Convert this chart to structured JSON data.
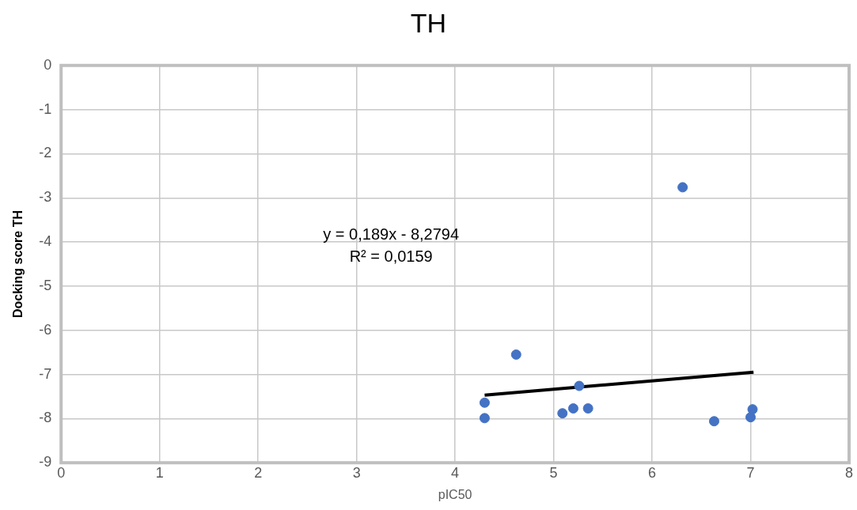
{
  "chart_data": {
    "type": "scatter",
    "title": "TH",
    "xlabel": "pIC50",
    "ylabel": "Docking score TH",
    "annotations": [
      "y = 0,189x - 8,2794",
      "R² = 0,0159"
    ],
    "series": [
      {
        "color": "#4472c4",
        "marker": "circle",
        "x": [
          4.3,
          4.3,
          4.62,
          5.26,
          5.09,
          5.2,
          5.35,
          6.31,
          6.63,
          7.02,
          7.0
        ],
        "values": [
          -7.64,
          -7.99,
          -6.55,
          -7.26,
          -7.88,
          -7.77,
          -7.77,
          -2.76,
          -8.06,
          -7.79,
          -7.97
        ]
      },
      {
        "type": "line",
        "color": "#000000",
        "marker": "none",
        "line_style": "solid",
        "x": [
          4.3,
          7.03
        ],
        "values": [
          -7.47,
          -6.95
        ]
      }
    ],
    "xlim": [
      0,
      8
    ],
    "xticks": [
      0,
      1,
      2,
      3,
      4,
      5,
      6,
      7,
      8
    ],
    "ylim": [
      -9,
      0
    ],
    "yticks": [
      -9,
      -8,
      -7,
      -6,
      -5,
      -4,
      -3,
      -2,
      -1,
      0
    ],
    "grid": true,
    "legend": false
  }
}
